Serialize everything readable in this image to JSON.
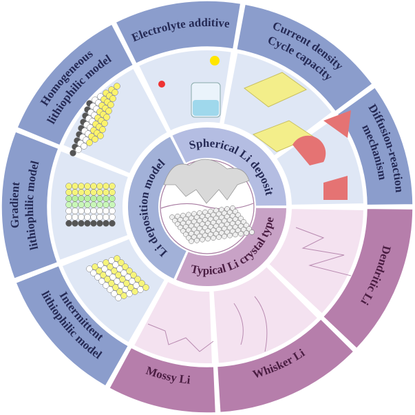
{
  "colors": {
    "outer_blue": "#8b9dcc",
    "outer_pink": "#b67eab",
    "panel_blue": "#dfe7f5",
    "panel_pink": "#f4e2f0",
    "inner_spherical": "#b4bde2",
    "inner_model": "#a2b1d8",
    "inner_crystal": "#c8a2c6",
    "text_blue": "#252a55",
    "text_pink": "#4a1d42"
  },
  "outer_ring": [
    {
      "id": "electrolyte",
      "lines": [
        "Electrolyte additive"
      ]
    },
    {
      "id": "current",
      "lines": [
        "Current density",
        "Cycle capacity"
      ]
    },
    {
      "id": "diffusion",
      "lines": [
        "Diffusion-reaction",
        "mechanism"
      ]
    },
    {
      "id": "dendritic",
      "lines": [
        "Dendritic Li"
      ]
    },
    {
      "id": "whisker",
      "lines": [
        "Whisker Li"
      ]
    },
    {
      "id": "mossy",
      "lines": [
        "Mossy Li"
      ]
    },
    {
      "id": "intermittent",
      "lines": [
        "Intermittent",
        "lithiophilic model"
      ]
    },
    {
      "id": "gradient",
      "lines": [
        "Gradient",
        "lithiophilic model"
      ]
    },
    {
      "id": "homogeneous",
      "lines": [
        "Homogeneous",
        "lithiophilic model"
      ]
    }
  ],
  "inner_ring": [
    {
      "id": "spherical",
      "label": "Spherical Li deposit"
    },
    {
      "id": "crystal",
      "label": "Typical Li crystal type"
    },
    {
      "id": "model",
      "label": "Li deposition model"
    }
  ]
}
